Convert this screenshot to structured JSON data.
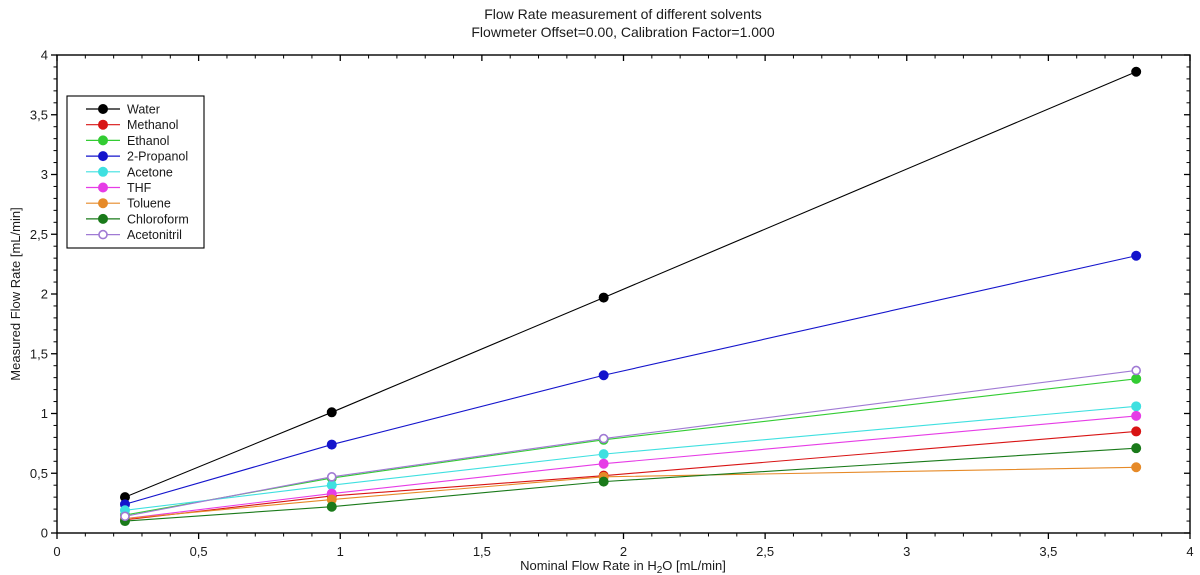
{
  "title": {
    "line1": "Flow Rate measurement of different solvents",
    "line2": "Flowmeter Offset=0.00, Calibration Factor=1.000"
  },
  "axes": {
    "x_label_parts": {
      "pre": "Nominal Flow Rate in H",
      "sub": "2",
      "post": "O [mL/min]"
    },
    "y_label": "Measured Flow Rate [mL/min]",
    "decimal_separator": ","
  },
  "chart_data": {
    "type": "line",
    "title": "Flow Rate measurement of different solvents",
    "subtitle": "Flowmeter Offset=0.00, Calibration Factor=1.000",
    "xlabel": "Nominal Flow Rate in H2O [mL/min]",
    "ylabel": "Measured Flow Rate [mL/min]",
    "xlim": [
      0,
      4
    ],
    "ylim": [
      0,
      4
    ],
    "x_major_ticks": [
      0,
      0.5,
      1,
      1.5,
      2,
      2.5,
      3,
      3.5,
      4
    ],
    "y_major_ticks": [
      0,
      0.5,
      1,
      1.5,
      2,
      2.5,
      3,
      3.5,
      4
    ],
    "minor_tick_step": 0.1,
    "grid": false,
    "legend_position": "upper-left",
    "frame_color": "#000000",
    "x": [
      0.24,
      0.97,
      1.93,
      3.81
    ],
    "series": [
      {
        "name": "Water",
        "color": "#000000",
        "marker": "filled",
        "values": [
          0.3,
          1.01,
          1.97,
          3.86
        ]
      },
      {
        "name": "Methanol",
        "color": "#d81414",
        "marker": "filled",
        "values": [
          0.11,
          0.31,
          0.48,
          0.85
        ]
      },
      {
        "name": "Ethanol",
        "color": "#33cc33",
        "marker": "filled",
        "values": [
          0.15,
          0.46,
          0.78,
          1.29
        ]
      },
      {
        "name": "2-Propanol",
        "color": "#1414cc",
        "marker": "filled",
        "values": [
          0.24,
          0.74,
          1.32,
          2.32
        ]
      },
      {
        "name": "Acetone",
        "color": "#3fe0e0",
        "marker": "filled",
        "values": [
          0.19,
          0.4,
          0.66,
          1.06
        ]
      },
      {
        "name": "THF",
        "color": "#e63ce6",
        "marker": "filled",
        "values": [
          0.12,
          0.33,
          0.58,
          0.98
        ]
      },
      {
        "name": "Toluene",
        "color": "#e68a28",
        "marker": "filled",
        "values": [
          0.12,
          0.28,
          0.47,
          0.55
        ]
      },
      {
        "name": "Chloroform",
        "color": "#1a7a1a",
        "marker": "filled",
        "values": [
          0.1,
          0.22,
          0.43,
          0.71
        ]
      },
      {
        "name": "Acetonitril",
        "color": "#a07ad4",
        "marker": "open",
        "values": [
          0.14,
          0.47,
          0.79,
          1.36
        ]
      }
    ]
  }
}
